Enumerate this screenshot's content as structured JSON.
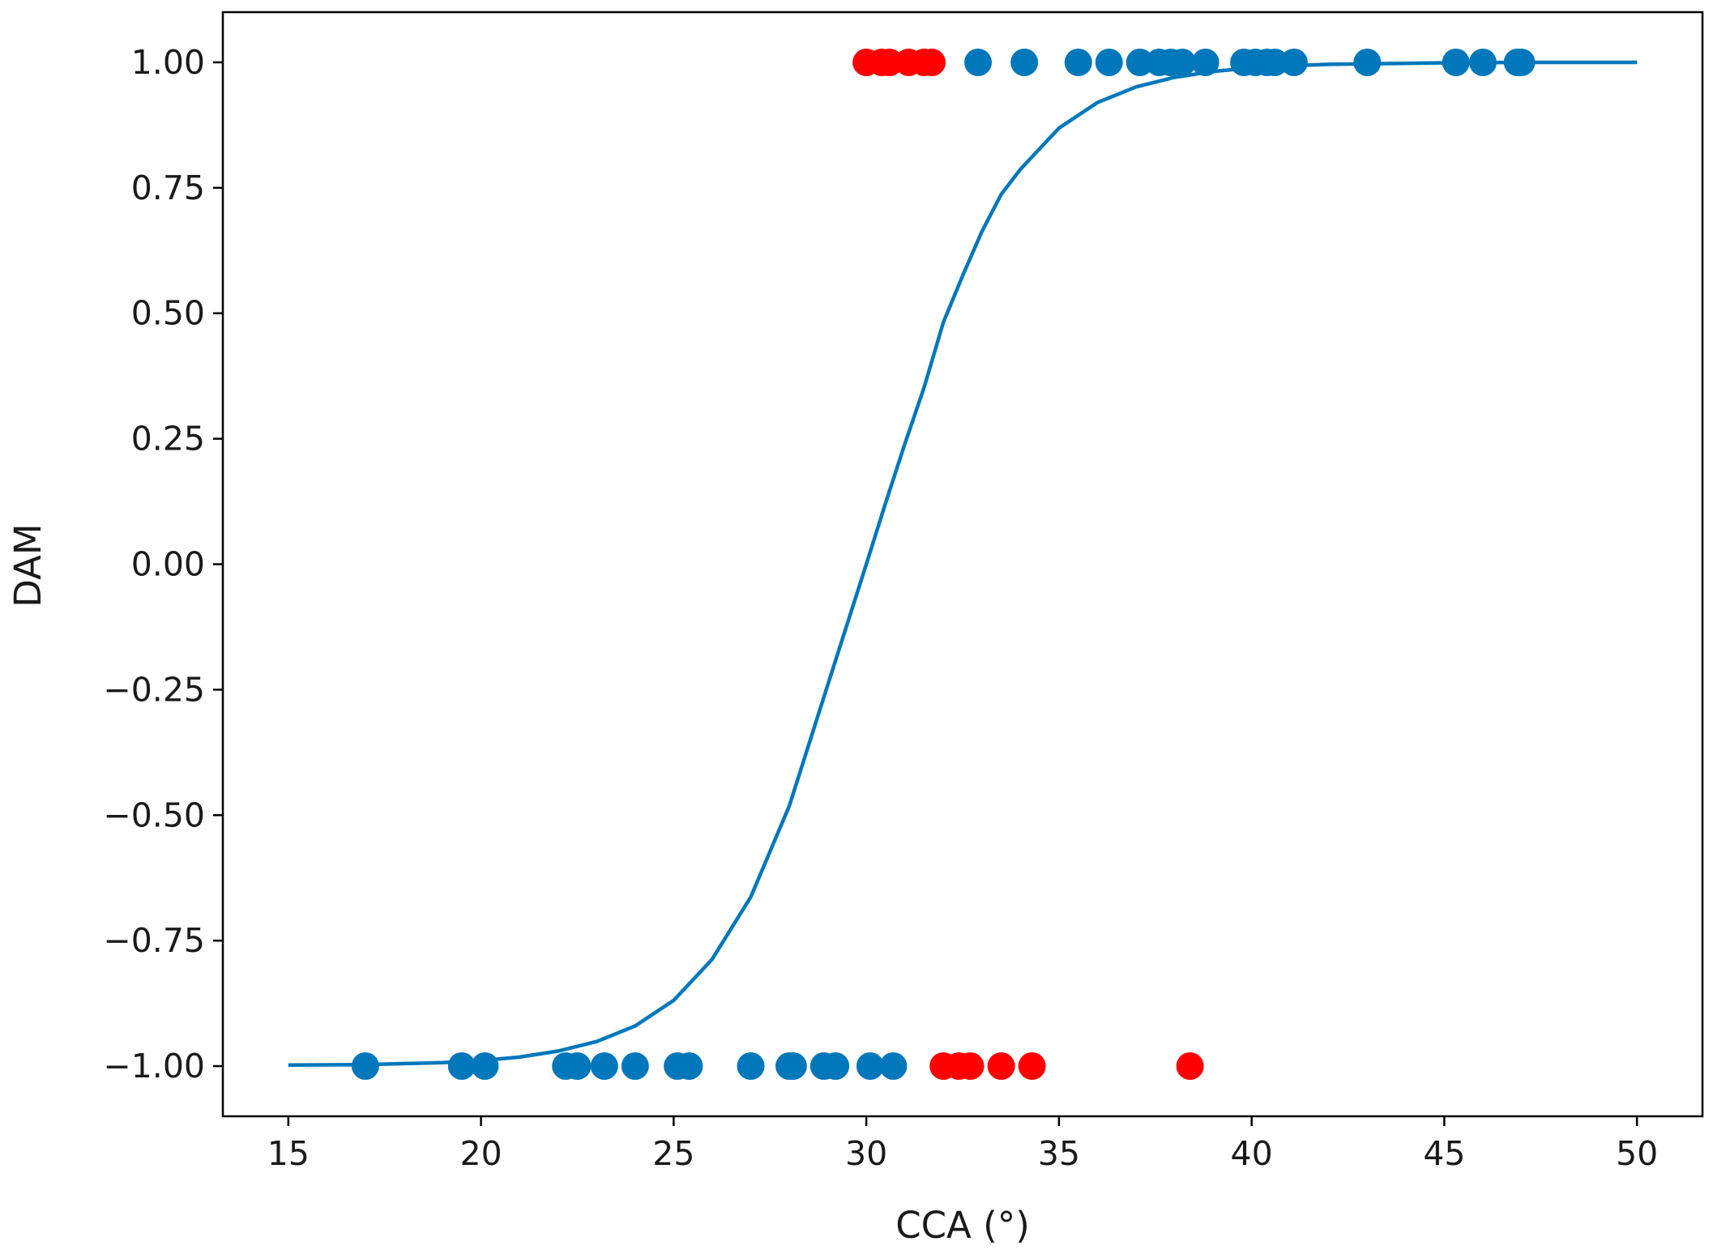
{
  "chart_data": {
    "type": "scatter",
    "xlabel": "CCA (°)",
    "ylabel": "DAM",
    "xlim": [
      13.3,
      51.7
    ],
    "ylim": [
      -1.1,
      1.1
    ],
    "xticks": [
      15,
      20,
      25,
      30,
      35,
      40,
      45,
      50
    ],
    "xtick_labels": [
      "15",
      "20",
      "25",
      "30",
      "35",
      "40",
      "45",
      "50"
    ],
    "yticks": [
      1.0,
      0.75,
      0.5,
      0.25,
      0.0,
      -0.25,
      -0.5,
      -0.75,
      -1.0
    ],
    "ytick_labels": [
      "1.00",
      "0.75",
      "0.50",
      "0.25",
      "0.00",
      "−0.25",
      "−0.50",
      "−0.75",
      "−1.00"
    ],
    "grid": false,
    "colors": {
      "blue": "#0077bb",
      "red": "#ff0000"
    },
    "series": [
      {
        "color": "blue",
        "marker": "circle",
        "points": [
          [
            17.0,
            -1
          ],
          [
            19.5,
            -1
          ],
          [
            20.1,
            -1
          ],
          [
            22.2,
            -1
          ],
          [
            22.5,
            -1
          ],
          [
            23.2,
            -1
          ],
          [
            24.0,
            -1
          ],
          [
            25.1,
            -1
          ],
          [
            25.4,
            -1
          ],
          [
            27.0,
            -1
          ],
          [
            28.0,
            -1
          ],
          [
            28.1,
            -1
          ],
          [
            28.9,
            -1
          ],
          [
            29.2,
            -1
          ],
          [
            30.1,
            -1
          ],
          [
            30.7,
            -1
          ],
          [
            32.9,
            1
          ],
          [
            34.1,
            1
          ],
          [
            35.5,
            1
          ],
          [
            36.3,
            1
          ],
          [
            37.1,
            1
          ],
          [
            37.6,
            1
          ],
          [
            37.9,
            1
          ],
          [
            38.2,
            1
          ],
          [
            38.8,
            1
          ],
          [
            39.8,
            1
          ],
          [
            40.1,
            1
          ],
          [
            40.4,
            1
          ],
          [
            40.6,
            1
          ],
          [
            41.1,
            1
          ],
          [
            43.0,
            1
          ],
          [
            45.3,
            1
          ],
          [
            46.0,
            1
          ],
          [
            46.9,
            1
          ],
          [
            47.0,
            1
          ]
        ]
      },
      {
        "color": "red",
        "marker": "circle",
        "points": [
          [
            30.0,
            1
          ],
          [
            30.4,
            1
          ],
          [
            30.6,
            1
          ],
          [
            31.1,
            1
          ],
          [
            31.5,
            1
          ],
          [
            31.7,
            1
          ],
          [
            32.0,
            -1
          ],
          [
            32.4,
            -1
          ],
          [
            32.7,
            -1
          ],
          [
            33.5,
            -1
          ],
          [
            34.3,
            -1
          ],
          [
            38.4,
            -1
          ]
        ]
      },
      {
        "type": "line",
        "color": "blue",
        "x": [
          15,
          17,
          19,
          20,
          21,
          22,
          23,
          24,
          25,
          26,
          27,
          28,
          29,
          30,
          30.5,
          31,
          31.5,
          32,
          32.5,
          33,
          33.5,
          34,
          35,
          36,
          37,
          38,
          39,
          40,
          41,
          42,
          43,
          45,
          47,
          50
        ],
        "y": [
          -0.998,
          -0.997,
          -0.993,
          -0.989,
          -0.982,
          -0.97,
          -0.951,
          -0.92,
          -0.869,
          -0.787,
          -0.663,
          -0.482,
          -0.24,
          0.0,
          0.122,
          0.24,
          0.352,
          0.482,
          0.575,
          0.663,
          0.737,
          0.787,
          0.869,
          0.92,
          0.951,
          0.97,
          0.982,
          0.989,
          0.993,
          0.996,
          0.997,
          0.999,
          1.0,
          1.0
        ]
      }
    ]
  }
}
